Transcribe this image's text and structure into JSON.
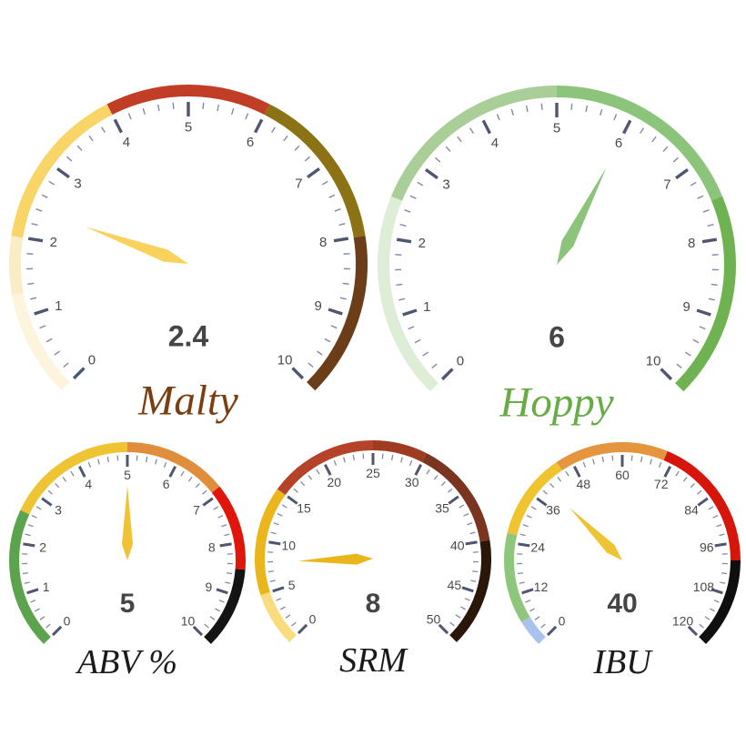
{
  "app": {
    "name": "beer-profile-gauges",
    "background": "#FFFFFF"
  },
  "style": {
    "major_tick_color": "#4F5770",
    "minor_tick_color": "#818AA3",
    "tick_label_color": "#4A4A4A",
    "value_color": "#454545"
  },
  "chart_data": [
    {
      "type": "gauge",
      "name": "malty",
      "title": "Malty",
      "title_color": "#7C3E10",
      "min": 0,
      "max": 10,
      "value": 2.4,
      "value_label": "2.4",
      "start_angle": 225,
      "end_angle": -45,
      "minor_splits": 5,
      "tick_labels": [
        "0",
        "1",
        "2",
        "3",
        "4",
        "5",
        "6",
        "7",
        "8",
        "9",
        "10"
      ],
      "needle_color": "#F8D25C",
      "segments": [
        {
          "from": 0,
          "to": 1.3,
          "color": "#FDF4DD"
        },
        {
          "from": 1.3,
          "to": 2,
          "color": "#F9ECC6"
        },
        {
          "from": 2,
          "to": 4,
          "color": "#F8D566"
        },
        {
          "from": 4,
          "to": 6,
          "color": "#C23D26"
        },
        {
          "from": 6,
          "to": 8,
          "color": "#8A7215"
        },
        {
          "from": 8,
          "to": 10,
          "color": "#6B3D18"
        }
      ]
    },
    {
      "type": "gauge",
      "name": "hoppy",
      "title": "Hoppy",
      "title_color": "#68AC47",
      "min": 0,
      "max": 10,
      "value": 6,
      "value_label": "6",
      "start_angle": 225,
      "end_angle": -45,
      "minor_splits": 5,
      "tick_labels": [
        "0",
        "1",
        "2",
        "3",
        "4",
        "5",
        "6",
        "7",
        "8",
        "9",
        "10"
      ],
      "needle_color": "#8CC47B",
      "segments": [
        {
          "from": 0,
          "to": 2.5,
          "color": "#DEEDD5"
        },
        {
          "from": 2.5,
          "to": 5,
          "color": "#A9CE97"
        },
        {
          "from": 5,
          "to": 7.5,
          "color": "#8CC47B"
        },
        {
          "from": 7.5,
          "to": 10,
          "color": "#6FB251"
        }
      ]
    },
    {
      "type": "gauge",
      "name": "abv",
      "title": "ABV %",
      "title_color": "#1A1A1A",
      "min": 0,
      "max": 10,
      "value": 5,
      "value_label": "5",
      "start_angle": 225,
      "end_angle": -45,
      "minor_splits": 5,
      "tick_labels": [
        "0",
        "1",
        "2",
        "3",
        "4",
        "5",
        "6",
        "7",
        "8",
        "9",
        "10"
      ],
      "needle_color": "#EFC434",
      "segments": [
        {
          "from": 0,
          "to": 2.6,
          "color": "#5CA34D"
        },
        {
          "from": 2.6,
          "to": 5,
          "color": "#EFC434"
        },
        {
          "from": 5,
          "to": 6.9,
          "color": "#E08D3C"
        },
        {
          "from": 6.9,
          "to": 8.5,
          "color": "#DF1609"
        },
        {
          "from": 8.5,
          "to": 10,
          "color": "#141414"
        }
      ]
    },
    {
      "type": "gauge",
      "name": "srm",
      "title": "SRM",
      "title_color": "#1A1A1A",
      "min": 0,
      "max": 50,
      "value": 8,
      "value_label": "8",
      "start_angle": 225,
      "end_angle": -45,
      "minor_splits": 5,
      "tick_labels": [
        "0",
        "5",
        "10",
        "15",
        "20",
        "25",
        "30",
        "35",
        "40",
        "45",
        "50"
      ],
      "needle_color": "#EBB61C",
      "segments": [
        {
          "from": 0,
          "to": 5,
          "color": "#F8DC7E"
        },
        {
          "from": 5,
          "to": 15,
          "color": "#EBB61C"
        },
        {
          "from": 15,
          "to": 25,
          "color": "#B4432A"
        },
        {
          "from": 25,
          "to": 30,
          "color": "#9E3C22"
        },
        {
          "from": 30,
          "to": 40,
          "color": "#7A3420"
        },
        {
          "from": 40,
          "to": 50,
          "color": "#2B1709"
        }
      ]
    },
    {
      "type": "gauge",
      "name": "ibu",
      "title": "IBU",
      "title_color": "#1A1A1A",
      "min": 0,
      "max": 120,
      "value": 40,
      "value_label": "40",
      "start_angle": 225,
      "end_angle": -45,
      "minor_splits": 5,
      "tick_labels": [
        "0",
        "12",
        "24",
        "36",
        "48",
        "60",
        "72",
        "84",
        "96",
        "108",
        "120"
      ],
      "needle_color": "#EFC434",
      "segments": [
        {
          "from": 0,
          "to": 6,
          "color": "#A8C4EE"
        },
        {
          "from": 6,
          "to": 26,
          "color": "#8FC67E"
        },
        {
          "from": 26,
          "to": 45,
          "color": "#EFC42F"
        },
        {
          "from": 45,
          "to": 70,
          "color": "#E6953F"
        },
        {
          "from": 70,
          "to": 100,
          "color": "#D6150B"
        },
        {
          "from": 100,
          "to": 120,
          "color": "#0F0F0F"
        }
      ]
    }
  ]
}
